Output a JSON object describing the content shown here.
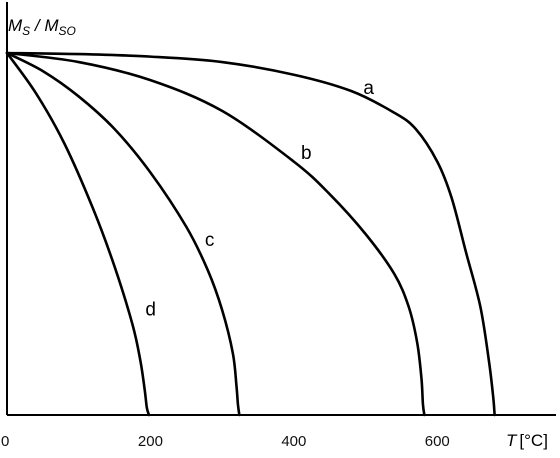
{
  "chart_data": {
    "type": "line",
    "title": "",
    "xlabel": {
      "symbol": "T",
      "unit": "[°C]"
    },
    "ylabel": {
      "numerator": "M",
      "numerator_sub": "S",
      "separator": " / ",
      "denominator": "M",
      "denominator_sub": "SO"
    },
    "xlim": [
      0,
      760
    ],
    "ylim": [
      0,
      1
    ],
    "x_ticks": [
      0,
      200,
      400,
      600
    ],
    "x_tick_labels": [
      "0",
      "200",
      "400",
      "600"
    ],
    "grid": false,
    "legend": "none",
    "series": [
      {
        "name": "a",
        "points": [
          [
            0,
            1.0
          ],
          [
            100,
            0.997
          ],
          [
            200,
            0.99
          ],
          [
            300,
            0.975
          ],
          [
            400,
            0.94
          ],
          [
            480,
            0.895
          ],
          [
            540,
            0.835
          ],
          [
            570,
            0.79
          ],
          [
            600,
            0.7
          ],
          [
            620,
            0.6
          ],
          [
            640,
            0.45
          ],
          [
            660,
            0.3
          ],
          [
            672,
            0.15
          ],
          [
            678,
            0.05
          ],
          [
            680,
            0.0
          ]
        ]
      },
      {
        "name": "b",
        "points": [
          [
            0,
            1.0
          ],
          [
            100,
            0.975
          ],
          [
            200,
            0.925
          ],
          [
            300,
            0.84
          ],
          [
            400,
            0.7
          ],
          [
            450,
            0.61
          ],
          [
            500,
            0.5
          ],
          [
            540,
            0.39
          ],
          [
            560,
            0.3
          ],
          [
            572,
            0.2
          ],
          [
            578,
            0.1
          ],
          [
            580,
            0.03
          ],
          [
            582,
            0.0
          ]
        ]
      },
      {
        "name": "c",
        "points": [
          [
            0,
            1.0
          ],
          [
            50,
            0.95
          ],
          [
            100,
            0.88
          ],
          [
            150,
            0.79
          ],
          [
            200,
            0.67
          ],
          [
            250,
            0.52
          ],
          [
            280,
            0.4
          ],
          [
            300,
            0.29
          ],
          [
            315,
            0.17
          ],
          [
            320,
            0.08
          ],
          [
            322,
            0.03
          ],
          [
            324,
            0.0
          ]
        ]
      },
      {
        "name": "d",
        "points": [
          [
            0,
            1.0
          ],
          [
            40,
            0.89
          ],
          [
            80,
            0.75
          ],
          [
            120,
            0.57
          ],
          [
            150,
            0.41
          ],
          [
            175,
            0.25
          ],
          [
            186,
            0.15
          ],
          [
            192,
            0.07
          ],
          [
            195,
            0.02
          ],
          [
            198,
            0.0
          ]
        ]
      }
    ],
    "curve_labels": [
      {
        "series": "a",
        "x": 497,
        "y": 0.887
      },
      {
        "series": "b",
        "x": 410,
        "y": 0.707
      },
      {
        "series": "c",
        "x": 276,
        "y": 0.467
      },
      {
        "series": "d",
        "x": 193,
        "y": 0.275
      }
    ]
  }
}
